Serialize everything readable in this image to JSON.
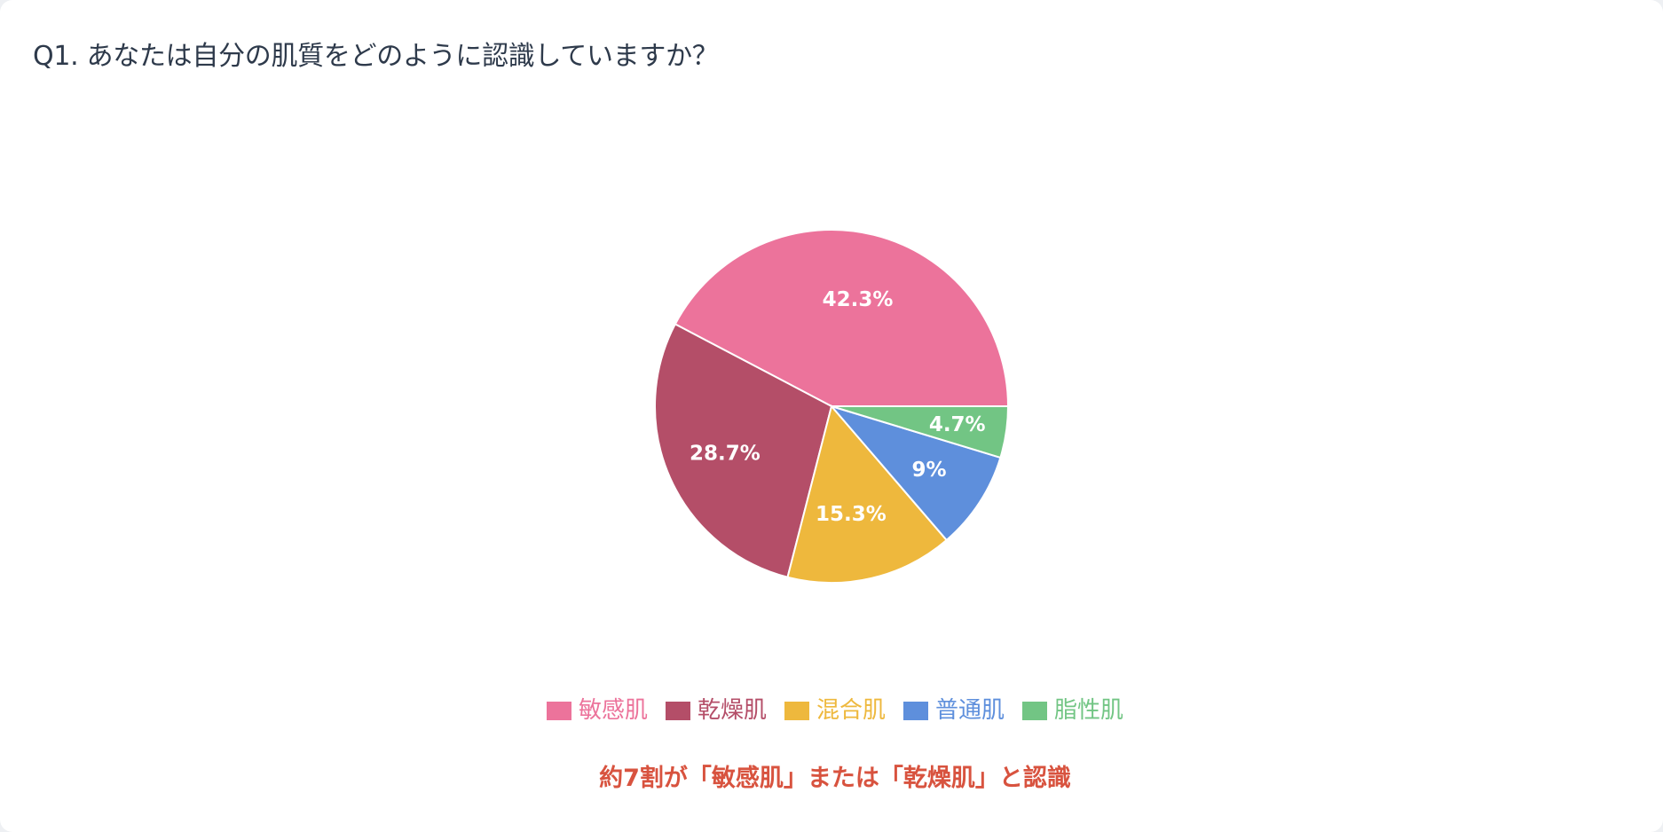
{
  "card": {
    "title": "Q1. あなたは自分の肌質をどのように認識していますか？",
    "footer_note": "約7割が「敏感肌」または「乾燥肌」と認識"
  },
  "legend": {
    "items": [
      {
        "label": "敏感肌",
        "color": "#EC739B"
      },
      {
        "label": "乾燥肌",
        "color": "#B44E68"
      },
      {
        "label": "混合肌",
        "color": "#EEB83D"
      },
      {
        "label": "普通肌",
        "color": "#5E8FDC"
      },
      {
        "label": "脂性肌",
        "color": "#72C584"
      }
    ]
  },
  "chart_data": {
    "type": "pie",
    "title": "Q1. あなたは自分の肌質をどのように認識していますか？",
    "categories": [
      "敏感肌",
      "乾燥肌",
      "混合肌",
      "普通肌",
      "脂性肌"
    ],
    "values": [
      42.3,
      28.7,
      15.3,
      9,
      4.7
    ],
    "labels": [
      "42.3%",
      "28.7%",
      "15.3%",
      "9%",
      "4.7%"
    ],
    "colors": [
      "#EC739B",
      "#B44E68",
      "#EEB83D",
      "#5E8FDC",
      "#72C584"
    ],
    "start_angle_deg": 0,
    "direction": "counterclockwise-from-east",
    "legend_position": "bottom",
    "annotation": "約7割が「敏感肌」または「乾燥肌」と認識"
  }
}
